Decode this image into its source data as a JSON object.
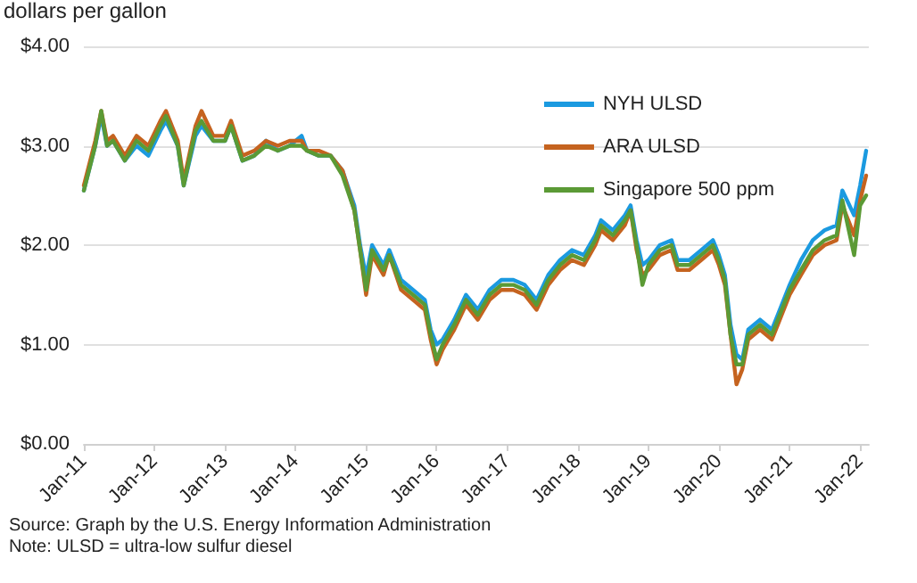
{
  "chart_data": {
    "type": "line",
    "ylabel": "dollars per gallon",
    "x": [
      "2011-01",
      "2011-03",
      "2011-04",
      "2011-05",
      "2011-06",
      "2011-08",
      "2011-10",
      "2011-12",
      "2012-02",
      "2012-03",
      "2012-05",
      "2012-06",
      "2012-08",
      "2012-09",
      "2012-11",
      "2013-01",
      "2013-02",
      "2013-04",
      "2013-06",
      "2013-08",
      "2013-10",
      "2013-12",
      "2014-02",
      "2014-03",
      "2014-05",
      "2014-07",
      "2014-09",
      "2014-11",
      "2014-12",
      "2015-01",
      "2015-02",
      "2015-04",
      "2015-05",
      "2015-07",
      "2015-09",
      "2015-11",
      "2015-12",
      "2016-01",
      "2016-02",
      "2016-04",
      "2016-06",
      "2016-08",
      "2016-10",
      "2016-12",
      "2017-02",
      "2017-04",
      "2017-06",
      "2017-08",
      "2017-10",
      "2017-12",
      "2018-02",
      "2018-04",
      "2018-05",
      "2018-07",
      "2018-09",
      "2018-10",
      "2018-11",
      "2018-12",
      "2019-01",
      "2019-03",
      "2019-05",
      "2019-06",
      "2019-08",
      "2019-10",
      "2019-12",
      "2020-01",
      "2020-02",
      "2020-03",
      "2020-04",
      "2020-05",
      "2020-06",
      "2020-08",
      "2020-10",
      "2020-11",
      "2021-01",
      "2021-03",
      "2021-05",
      "2021-07",
      "2021-09",
      "2021-10",
      "2021-12",
      "2022-01",
      "2022-02"
    ],
    "series": [
      {
        "name": "NYH ULSD",
        "color": "#1b9ae0",
        "values": [
          2.55,
          3.0,
          3.3,
          3.0,
          3.05,
          2.85,
          3.0,
          2.9,
          3.15,
          3.25,
          3.0,
          2.6,
          3.1,
          3.2,
          3.05,
          3.05,
          3.2,
          2.85,
          2.9,
          3.05,
          2.95,
          3.0,
          3.1,
          2.95,
          2.9,
          2.9,
          2.75,
          2.4,
          2.0,
          1.68,
          2.0,
          1.8,
          1.95,
          1.65,
          1.55,
          1.45,
          1.15,
          1.0,
          1.05,
          1.25,
          1.5,
          1.35,
          1.55,
          1.65,
          1.65,
          1.6,
          1.45,
          1.7,
          1.85,
          1.95,
          1.9,
          2.1,
          2.25,
          2.15,
          2.3,
          2.4,
          2.05,
          1.8,
          1.85,
          2.0,
          2.05,
          1.85,
          1.85,
          1.95,
          2.05,
          1.9,
          1.7,
          1.2,
          0.9,
          0.85,
          1.15,
          1.25,
          1.15,
          1.3,
          1.6,
          1.85,
          2.05,
          2.15,
          2.2,
          2.55,
          2.3,
          2.6,
          2.95
        ]
      },
      {
        "name": "ARA ULSD",
        "color": "#c5631f",
        "values": [
          2.6,
          3.05,
          3.35,
          3.05,
          3.1,
          2.9,
          3.1,
          3.0,
          3.25,
          3.35,
          3.05,
          2.65,
          3.2,
          3.35,
          3.1,
          3.1,
          3.25,
          2.9,
          2.95,
          3.05,
          3.0,
          3.05,
          3.05,
          2.95,
          2.95,
          2.9,
          2.75,
          2.35,
          1.95,
          1.5,
          1.9,
          1.7,
          1.9,
          1.55,
          1.45,
          1.35,
          1.05,
          0.8,
          0.95,
          1.15,
          1.4,
          1.25,
          1.45,
          1.55,
          1.55,
          1.5,
          1.35,
          1.6,
          1.75,
          1.85,
          1.8,
          2.0,
          2.15,
          2.05,
          2.2,
          2.35,
          1.95,
          1.7,
          1.75,
          1.9,
          1.95,
          1.75,
          1.75,
          1.85,
          1.95,
          1.8,
          1.6,
          1.1,
          0.6,
          0.75,
          1.05,
          1.15,
          1.05,
          1.2,
          1.5,
          1.7,
          1.9,
          2.0,
          2.05,
          2.4,
          2.1,
          2.45,
          2.7
        ]
      },
      {
        "name": "Singapore 500 ppm",
        "color": "#5b9a35",
        "values": [
          2.55,
          3.0,
          3.35,
          3.0,
          3.05,
          2.85,
          3.05,
          2.95,
          3.2,
          3.3,
          3.0,
          2.6,
          3.15,
          3.25,
          3.05,
          3.05,
          3.2,
          2.85,
          2.9,
          3.0,
          2.95,
          3.0,
          3.0,
          2.95,
          2.9,
          2.9,
          2.7,
          2.35,
          1.95,
          1.55,
          1.95,
          1.75,
          1.9,
          1.6,
          1.5,
          1.4,
          1.1,
          0.85,
          1.0,
          1.2,
          1.45,
          1.3,
          1.5,
          1.6,
          1.6,
          1.55,
          1.4,
          1.65,
          1.8,
          1.9,
          1.85,
          2.05,
          2.2,
          2.1,
          2.25,
          2.35,
          2.0,
          1.6,
          1.8,
          1.95,
          2.0,
          1.8,
          1.8,
          1.9,
          2.0,
          1.85,
          1.65,
          1.1,
          0.8,
          0.8,
          1.1,
          1.2,
          1.1,
          1.25,
          1.55,
          1.75,
          1.95,
          2.05,
          2.1,
          2.45,
          1.9,
          2.4,
          2.5
        ]
      }
    ],
    "xlim": [
      "2011-01-01",
      "2022-02-15"
    ],
    "xticks": [
      {
        "value": "2011-01-01",
        "label": "Jan-11"
      },
      {
        "value": "2012-01-01",
        "label": "Jan-12"
      },
      {
        "value": "2013-01-01",
        "label": "Jan-13"
      },
      {
        "value": "2014-01-01",
        "label": "Jan-14"
      },
      {
        "value": "2015-01-01",
        "label": "Jan-15"
      },
      {
        "value": "2016-01-01",
        "label": "Jan-16"
      },
      {
        "value": "2017-01-01",
        "label": "Jan-17"
      },
      {
        "value": "2018-01-01",
        "label": "Jan-18"
      },
      {
        "value": "2019-01-01",
        "label": "Jan-19"
      },
      {
        "value": "2020-01-01",
        "label": "Jan-20"
      },
      {
        "value": "2021-01-01",
        "label": "Jan-21"
      },
      {
        "value": "2022-01-01",
        "label": "Jan-22"
      }
    ],
    "ylim": [
      0,
      4
    ],
    "yticks": [
      {
        "value": 0,
        "label": "$0.00"
      },
      {
        "value": 1,
        "label": "$1.00"
      },
      {
        "value": 2,
        "label": "$2.00"
      },
      {
        "value": 3,
        "label": "$3.00"
      },
      {
        "value": 4,
        "label": "$4.00"
      }
    ],
    "grid": "y",
    "legend": "top right",
    "marker": "none",
    "line_style": "solid",
    "annotations": [
      "Source: Graph by the U.S. Energy Information Administration",
      "Note: ULSD = ultra-low sulfur diesel"
    ]
  }
}
